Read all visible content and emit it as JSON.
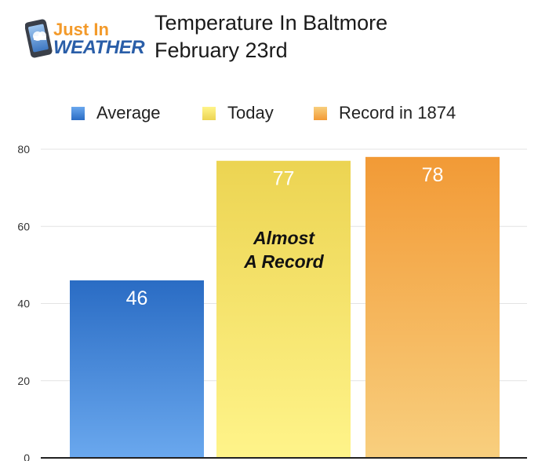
{
  "logo": {
    "line1": "Just In",
    "line2": "WEATHER"
  },
  "title": {
    "line1": "Temperature In Baltmore",
    "line2": "February 23rd"
  },
  "colors": {
    "average_top": "#2a6cc4",
    "average_bottom": "#6aa8ee",
    "today_top": "#ecd452",
    "today_bottom": "#fff48a",
    "record_top": "#f29a36",
    "record_bottom": "#f8cf7e",
    "grid": "#e3e3e3",
    "axis": "#222222"
  },
  "chart_data": {
    "type": "bar",
    "categories": [
      "Average",
      "Today",
      "Record in 1874"
    ],
    "values": [
      46,
      77,
      78
    ],
    "data_labels": [
      "46",
      "77",
      "78"
    ],
    "ylim": [
      0,
      80
    ],
    "yticks": [
      0,
      20,
      40,
      60,
      80
    ],
    "grid": true,
    "legend_position": "top",
    "annotation": {
      "line1": "Almost",
      "line2": "A Record"
    }
  }
}
